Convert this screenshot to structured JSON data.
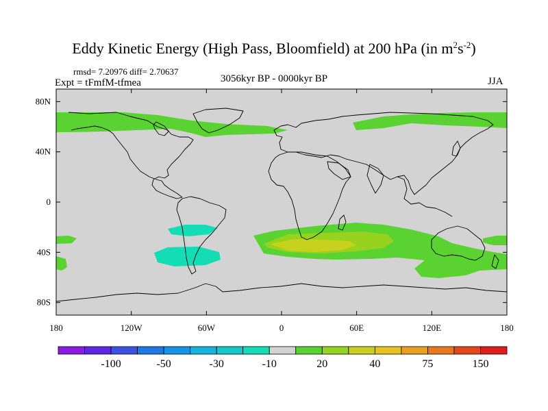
{
  "title": {
    "main": "Eddy Kinetic Energy (High Pass, Bloomfield) at 200 hPa (in m",
    "sup1": "2",
    "mid": "s",
    "sup2": "-2",
    "end": ")"
  },
  "stats": "rmsd= 7.20976 diff= 2.70637",
  "experiment": "Expt = tFmfM-tfmea",
  "period": "3056kyr BP - 0000kyr BP",
  "season": "JJA",
  "map": {
    "lon_range": [
      -180,
      180
    ],
    "lat_range": [
      -90,
      90
    ],
    "lat_ticks": [
      {
        "value": 80,
        "label": "80N"
      },
      {
        "value": 40,
        "label": "40N"
      },
      {
        "value": 0,
        "label": "0"
      },
      {
        "value": -40,
        "label": "40S"
      },
      {
        "value": -80,
        "label": "80S"
      }
    ],
    "lon_ticks": [
      {
        "value": -180,
        "label": "180"
      },
      {
        "value": -120,
        "label": "120W"
      },
      {
        "value": -60,
        "label": "60W"
      },
      {
        "value": 0,
        "label": "0"
      },
      {
        "value": 60,
        "label": "60E"
      },
      {
        "value": 120,
        "label": "120E"
      },
      {
        "value": 180,
        "label": "180"
      }
    ],
    "background_color": "#d3d3d3"
  },
  "colorbar": {
    "colors": [
      "#8a1ee0",
      "#5a28e6",
      "#3c50e6",
      "#1e78e6",
      "#1496e6",
      "#14b4dc",
      "#14c8c8",
      "#14dcb4",
      "#d3d3d3",
      "#5ad232",
      "#96d21e",
      "#c8d21e",
      "#e6c31e",
      "#e6a01e",
      "#e6781e",
      "#e6461e",
      "#dc1e1e"
    ],
    "labels": [
      "-100",
      "-50",
      "-30",
      "-10",
      "20",
      "40",
      "75",
      "150"
    ],
    "label_boundaries": [
      2,
      4,
      6,
      8,
      10,
      12,
      14,
      16
    ]
  }
}
